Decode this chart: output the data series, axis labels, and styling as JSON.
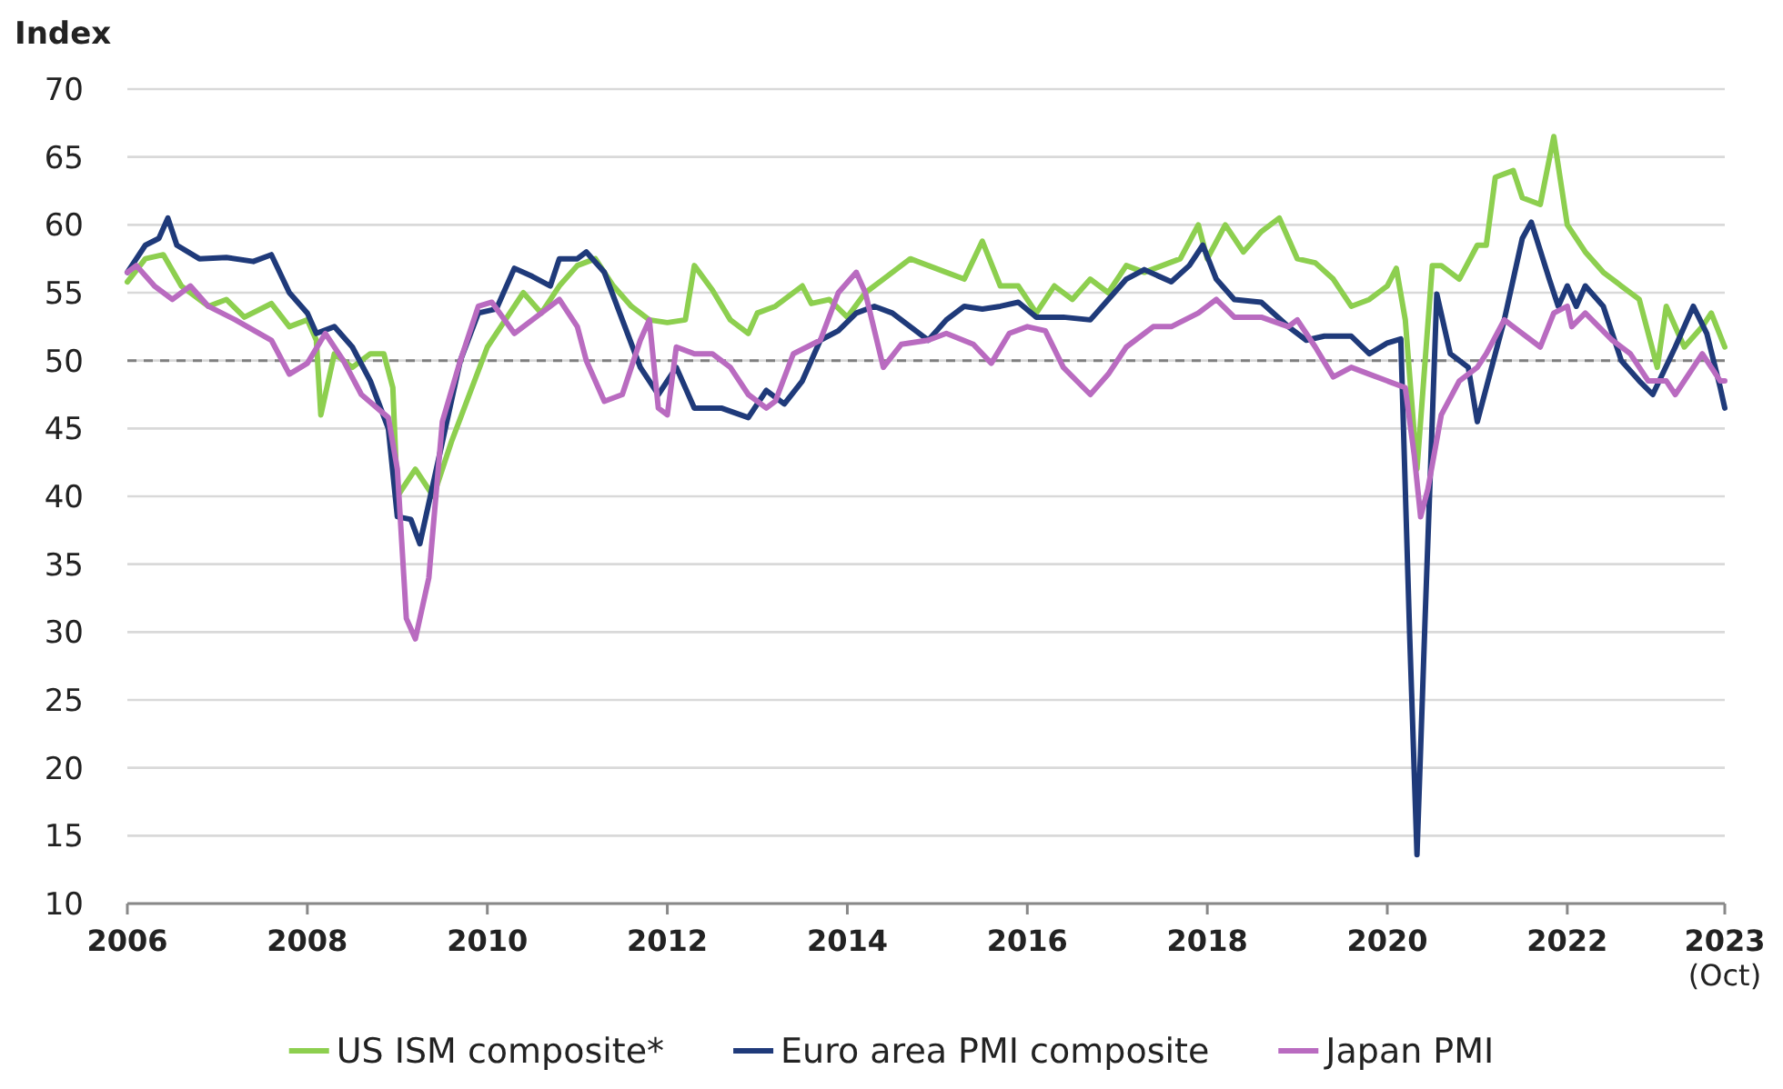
{
  "chart_data": {
    "type": "line",
    "ylabel": "Index",
    "xlim": [
      2006,
      2023.75
    ],
    "ylim": [
      10,
      70
    ],
    "xticks": [
      2006,
      2008,
      2010,
      2012,
      2014,
      2016,
      2018,
      2020,
      2022,
      {
        "value": 2023.75,
        "label": "2023\n(Oct)"
      }
    ],
    "yticks": [
      10,
      15,
      20,
      25,
      30,
      35,
      40,
      45,
      50,
      55,
      60,
      65,
      70
    ],
    "grid": "y",
    "legend": "bottom",
    "line_style": "solid",
    "marker": "none",
    "ref_lines": [
      {
        "axis": "y",
        "value": 50,
        "label": null,
        "color": "#808080",
        "line_style": "dashed"
      }
    ],
    "series": [
      {
        "name": "US ISM composite*",
        "color": "#8dcf4f",
        "x": [
          2006.0,
          2006.2,
          2006.4,
          2006.6,
          2006.9,
          2007.1,
          2007.3,
          2007.6,
          2007.8,
          2008.0,
          2008.1,
          2008.15,
          2008.3,
          2008.5,
          2008.7,
          2008.85,
          2008.95,
          2009.0,
          2009.2,
          2009.4,
          2009.6,
          2009.8,
          2010.0,
          2010.2,
          2010.4,
          2010.6,
          2010.8,
          2011.0,
          2011.2,
          2011.4,
          2011.6,
          2011.8,
          2012.0,
          2012.2,
          2012.3,
          2012.5,
          2012.7,
          2012.9,
          2013.0,
          2013.2,
          2013.5,
          2013.6,
          2013.8,
          2014.0,
          2014.2,
          2014.4,
          2014.7,
          2014.9,
          2015.1,
          2015.3,
          2015.5,
          2015.7,
          2015.9,
          2016.1,
          2016.3,
          2016.5,
          2016.7,
          2016.9,
          2017.1,
          2017.3,
          2017.5,
          2017.7,
          2017.9,
          2018.0,
          2018.2,
          2018.4,
          2018.6,
          2018.8,
          2019.0,
          2019.2,
          2019.4,
          2019.6,
          2019.8,
          2020.0,
          2020.1,
          2020.2,
          2020.33,
          2020.5,
          2020.6,
          2020.8,
          2021.0,
          2021.1,
          2021.2,
          2021.4,
          2021.5,
          2021.7,
          2021.85,
          2022.0,
          2022.2,
          2022.4,
          2022.6,
          2022.8,
          2023.0,
          2023.1,
          2023.3,
          2023.5,
          2023.6,
          2023.75
        ],
        "values": [
          55.8,
          57.5,
          57.8,
          55.5,
          54,
          54.5,
          53.2,
          54.2,
          52.5,
          53,
          51.5,
          46,
          50.5,
          49.5,
          50.5,
          50.5,
          48,
          40,
          42,
          40,
          44,
          47.5,
          51,
          53,
          55,
          53.5,
          55.5,
          57,
          57.5,
          55.5,
          54,
          53,
          52.8,
          53,
          57,
          55.2,
          53,
          52,
          53.5,
          54,
          55.5,
          54.2,
          54.5,
          53.2,
          55,
          56,
          57.5,
          57,
          56.5,
          56,
          58.8,
          55.5,
          55.5,
          53.5,
          55.5,
          54.5,
          56,
          55,
          57,
          56.5,
          57,
          57.5,
          60,
          57.5,
          60,
          58,
          59.5,
          60.5,
          57.5,
          57.2,
          56,
          54,
          54.5,
          55.5,
          56.8,
          53,
          42,
          57,
          57,
          56,
          58.5,
          58.5,
          63.5,
          64,
          62,
          61.5,
          66.5,
          60,
          58,
          56.5,
          55.5,
          54.5,
          49.5,
          54,
          51,
          52.5,
          53.5,
          51
        ]
      },
      {
        "name": "Euro area PMI composite",
        "color": "#1f3a7a",
        "x": [
          2006.0,
          2006.2,
          2006.35,
          2006.45,
          2006.55,
          2006.8,
          2007.1,
          2007.4,
          2007.6,
          2007.8,
          2008.0,
          2008.1,
          2008.3,
          2008.5,
          2008.7,
          2008.9,
          2009.0,
          2009.15,
          2009.25,
          2009.5,
          2009.7,
          2009.9,
          2010.1,
          2010.3,
          2010.5,
          2010.7,
          2010.8,
          2011.0,
          2011.1,
          2011.3,
          2011.5,
          2011.7,
          2011.9,
          2012.1,
          2012.3,
          2012.6,
          2012.9,
          2013.1,
          2013.3,
          2013.5,
          2013.7,
          2013.9,
          2014.1,
          2014.3,
          2014.5,
          2014.7,
          2014.9,
          2015.1,
          2015.3,
          2015.5,
          2015.7,
          2015.9,
          2016.1,
          2016.4,
          2016.7,
          2016.9,
          2017.1,
          2017.3,
          2017.6,
          2017.8,
          2017.95,
          2018.1,
          2018.3,
          2018.6,
          2018.9,
          2019.1,
          2019.3,
          2019.6,
          2019.8,
          2020.0,
          2020.15,
          2020.25,
          2020.33,
          2020.42,
          2020.55,
          2020.7,
          2020.9,
          2021.0,
          2021.1,
          2021.3,
          2021.5,
          2021.6,
          2021.8,
          2021.9,
          2022.0,
          2022.1,
          2022.2,
          2022.4,
          2022.6,
          2022.8,
          2022.95,
          2023.2,
          2023.4,
          2023.55,
          2023.7,
          2023.75
        ],
        "values": [
          56.5,
          58.5,
          59,
          60.5,
          58.5,
          57.5,
          57.6,
          57.3,
          57.8,
          55,
          53.5,
          52,
          52.5,
          51,
          48.5,
          45,
          38.5,
          38.3,
          36.5,
          44,
          50,
          53.5,
          53.8,
          56.8,
          56.2,
          55.5,
          57.5,
          57.5,
          58,
          56.5,
          53,
          49.5,
          47.5,
          49.5,
          46.5,
          46.5,
          45.8,
          47.8,
          46.8,
          48.5,
          51.5,
          52.2,
          53.5,
          54,
          53.5,
          52.5,
          51.5,
          53,
          54,
          53.8,
          54,
          54.3,
          53.2,
          53.2,
          53,
          54.5,
          56,
          56.7,
          55.8,
          57,
          58.5,
          56,
          54.5,
          54.3,
          52.5,
          51.5,
          51.8,
          51.8,
          50.5,
          51.3,
          51.6,
          29.5,
          13.6,
          31,
          54.9,
          50.5,
          49.5,
          45.5,
          48,
          53,
          59,
          60.2,
          56,
          54,
          55.5,
          54,
          55.5,
          54,
          50,
          48.5,
          47.5,
          51,
          54,
          52,
          48,
          46.5
        ]
      },
      {
        "name": "Japan PMI",
        "color": "#b96bc0",
        "x": [
          2006.0,
          2006.1,
          2006.3,
          2006.5,
          2006.7,
          2006.9,
          2007.2,
          2007.6,
          2007.8,
          2008.0,
          2008.2,
          2008.4,
          2008.6,
          2008.9,
          2009.0,
          2009.1,
          2009.2,
          2009.35,
          2009.5,
          2009.7,
          2009.9,
          2010.05,
          2010.3,
          2010.5,
          2010.8,
          2011.0,
          2011.1,
          2011.3,
          2011.5,
          2011.7,
          2011.8,
          2011.9,
          2012.0,
          2012.1,
          2012.3,
          2012.5,
          2012.7,
          2012.9,
          2013.1,
          2013.2,
          2013.4,
          2013.7,
          2013.9,
          2014.1,
          2014.2,
          2014.4,
          2014.6,
          2014.9,
          2015.1,
          2015.4,
          2015.6,
          2015.8,
          2016.0,
          2016.2,
          2016.4,
          2016.7,
          2016.9,
          2017.1,
          2017.4,
          2017.6,
          2017.9,
          2018.1,
          2018.3,
          2018.6,
          2018.9,
          2019.0,
          2019.2,
          2019.4,
          2019.6,
          2019.8,
          2020.0,
          2020.2,
          2020.3,
          2020.37,
          2020.45,
          2020.6,
          2020.8,
          2021.0,
          2021.1,
          2021.3,
          2021.5,
          2021.7,
          2021.85,
          2022.0,
          2022.05,
          2022.2,
          2022.5,
          2022.7,
          2022.9,
          2023.1,
          2023.2,
          2023.4,
          2023.5,
          2023.6,
          2023.7,
          2023.75
        ],
        "values": [
          56.5,
          57,
          55.5,
          54.5,
          55.5,
          54,
          53,
          51.5,
          49,
          49.8,
          52,
          50,
          47.5,
          45.8,
          42,
          31,
          29.5,
          34,
          45.5,
          50,
          54,
          54.3,
          52,
          53,
          54.5,
          52.5,
          50,
          47,
          47.5,
          51.5,
          53,
          46.5,
          46,
          51,
          50.5,
          50.5,
          49.5,
          47.5,
          46.5,
          47,
          50.5,
          51.5,
          55,
          56.5,
          55,
          49.5,
          51.2,
          51.5,
          52,
          51.2,
          49.8,
          52,
          52.5,
          52.2,
          49.5,
          47.5,
          49,
          51,
          52.5,
          52.5,
          53.5,
          54.5,
          53.2,
          53.2,
          52.5,
          53,
          51,
          48.8,
          49.5,
          49,
          48.5,
          48,
          43,
          38.5,
          40.5,
          46,
          48.5,
          49.5,
          50.5,
          53,
          52,
          51,
          53.5,
          54,
          52.5,
          53.5,
          51.5,
          50.5,
          48.5,
          48.5,
          47.5,
          49.5,
          50.5,
          49.5,
          48.5,
          48.5
        ]
      }
    ]
  }
}
